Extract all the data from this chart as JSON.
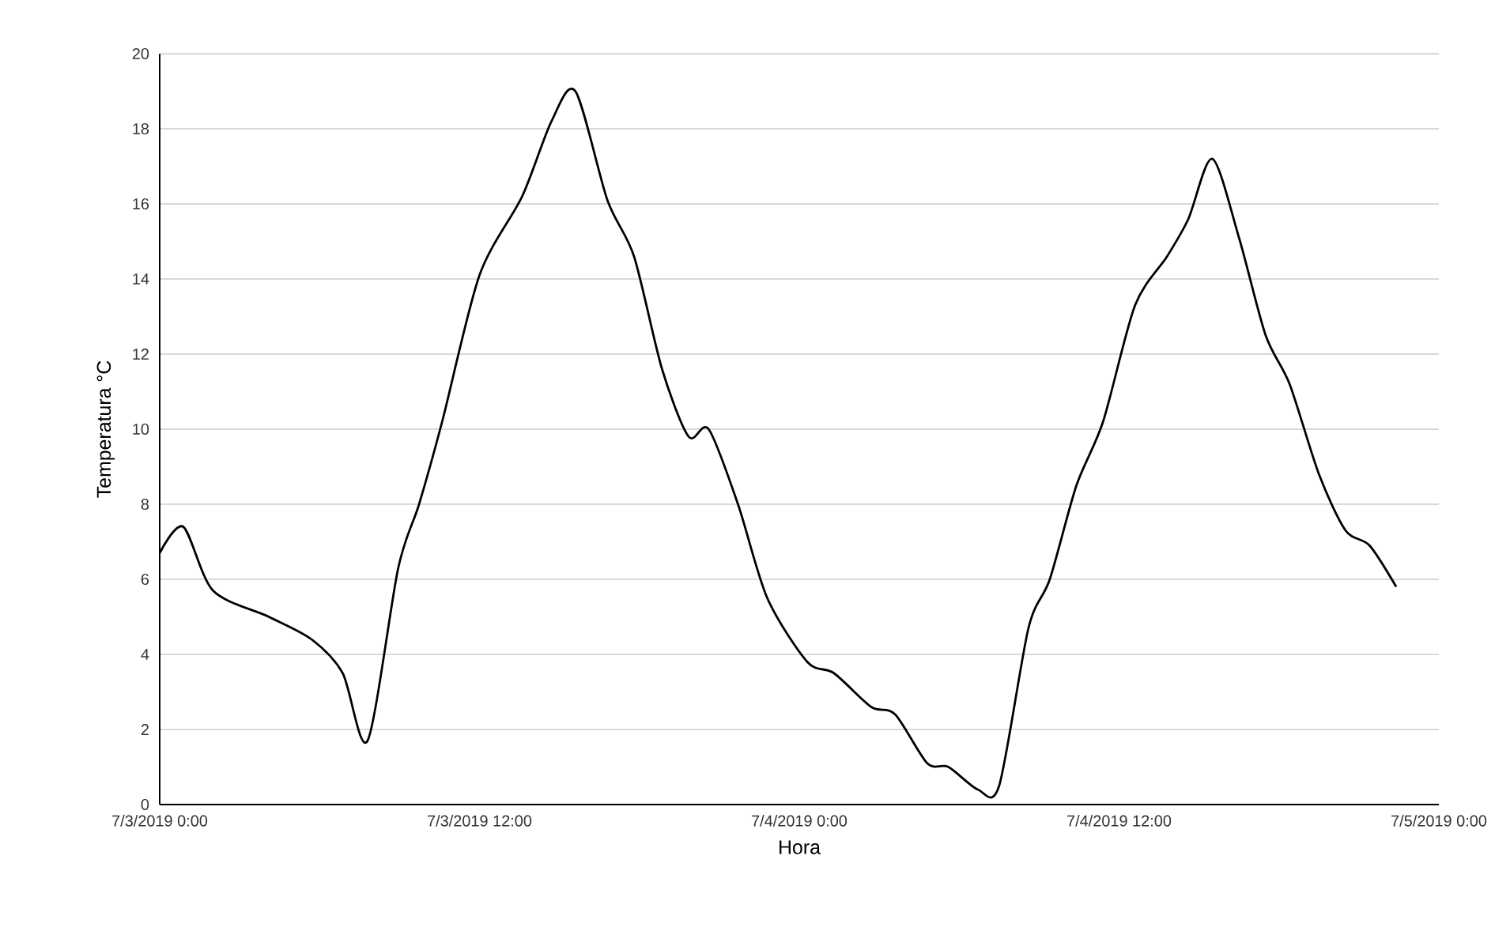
{
  "chart_data": {
    "type": "line",
    "xlabel": "Hora",
    "ylabel": "Temperatura °C",
    "x": [
      "2019-07-03T00:00",
      "2019-07-03T00:53",
      "2019-07-03T02:00",
      "2019-07-03T04:06",
      "2019-07-03T05:42",
      "2019-07-03T06:52",
      "2019-07-03T07:48",
      "2019-07-03T08:57",
      "2019-07-03T09:44",
      "2019-07-03T10:36",
      "2019-07-03T12:00",
      "2019-07-03T13:36",
      "2019-07-03T14:42",
      "2019-07-03T15:36",
      "2019-07-03T16:48",
      "2019-07-03T17:48",
      "2019-07-03T18:51",
      "2019-07-03T19:51",
      "2019-07-03T20:36",
      "2019-07-03T21:42",
      "2019-07-03T22:48",
      "2019-07-04T00:18",
      "2019-07-04T01:18",
      "2019-07-04T02:42",
      "2019-07-04T03:36",
      "2019-07-04T04:48",
      "2019-07-04T05:36",
      "2019-07-04T06:42",
      "2019-07-04T07:30",
      "2019-07-04T08:36",
      "2019-07-04T09:24",
      "2019-07-04T10:24",
      "2019-07-04T11:24",
      "2019-07-04T12:36",
      "2019-07-04T13:48",
      "2019-07-04T14:36",
      "2019-07-04T15:30",
      "2019-07-04T16:30",
      "2019-07-04T17:30",
      "2019-07-04T18:24",
      "2019-07-04T19:30",
      "2019-07-04T20:30",
      "2019-07-04T21:24",
      "2019-07-04T22:24"
    ],
    "series": [
      {
        "color": "#000000",
        "values": [
          6.7,
          7.4,
          5.7,
          5.0,
          4.4,
          3.5,
          1.7,
          6.3,
          8.0,
          10.2,
          14.1,
          16.2,
          18.2,
          19.0,
          16.1,
          14.6,
          11.6,
          9.8,
          10.0,
          8.0,
          5.5,
          3.8,
          3.5,
          2.6,
          2.4,
          1.1,
          1.0,
          0.4,
          0.5,
          4.7,
          6.0,
          8.5,
          10.2,
          13.3,
          14.6,
          15.6,
          17.2,
          15.1,
          12.5,
          11.2,
          8.8,
          7.3,
          6.9,
          5.8
        ]
      }
    ],
    "xlim": [
      "2019-07-03T00:00",
      "2019-07-05T00:00"
    ],
    "xticks": [
      {
        "value": "2019-07-03T00:00",
        "label": "7/3/2019 0:00"
      },
      {
        "value": "2019-07-03T12:00",
        "label": "7/3/2019 12:00"
      },
      {
        "value": "2019-07-04T00:00",
        "label": "7/4/2019 0:00"
      },
      {
        "value": "2019-07-04T12:00",
        "label": "7/4/2019 12:00"
      },
      {
        "value": "2019-07-05T00:00",
        "label": "7/5/2019 0:00"
      }
    ],
    "ylim": [
      0,
      20
    ],
    "yticks": [
      0,
      2,
      4,
      6,
      8,
      10,
      12,
      14,
      16,
      18,
      20
    ],
    "grid": "y",
    "legend": false,
    "marker": "none",
    "line_style": "solid"
  }
}
